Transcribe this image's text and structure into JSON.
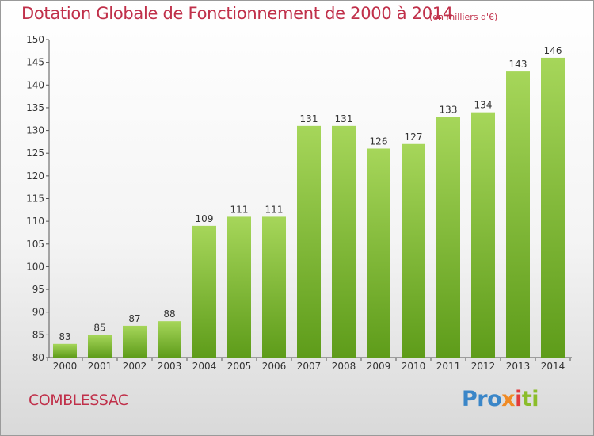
{
  "header": {
    "title": "Dotation Globale de Fonctionnement de 2000 à 2014",
    "unit": "(en milliers d'€)"
  },
  "footer": {
    "commune": "COMBLESSAC",
    "logo": [
      "Pro",
      "x",
      "i",
      "ti"
    ]
  },
  "colors": {
    "title": "#c0304a",
    "bar_light": "#a6d65a",
    "bar_dark": "#5e9c1a"
  },
  "chart_data": {
    "type": "bar",
    "title": "Dotation Globale de Fonctionnement de 2000 à 2014",
    "subtitle": "(en milliers d'€)",
    "categories": [
      "2000",
      "2001",
      "2002",
      "2003",
      "2004",
      "2005",
      "2006",
      "2007",
      "2008",
      "2009",
      "2010",
      "2011",
      "2012",
      "2013",
      "2014"
    ],
    "values": [
      83,
      85,
      87,
      88,
      109,
      111,
      111,
      131,
      131,
      126,
      127,
      133,
      134,
      143,
      146
    ],
    "ylim": [
      80,
      150
    ],
    "yticks": [
      80,
      85,
      90,
      95,
      100,
      105,
      110,
      115,
      120,
      125,
      130,
      135,
      140,
      145,
      150
    ],
    "xlabel": "",
    "ylabel": "",
    "grid": false,
    "data_labels": true
  }
}
